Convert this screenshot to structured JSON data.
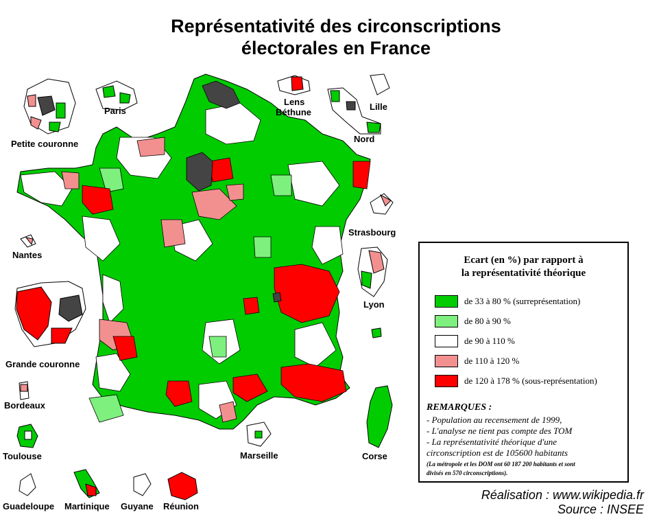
{
  "title": {
    "line1": "Représentativité des circonscriptions",
    "line2": "électorales en France"
  },
  "labels": {
    "paris": "Paris",
    "petite_couronne": "Petite couronne",
    "lens": "Lens",
    "bethune": "Béthune",
    "lille": "Lille",
    "nord": "Nord",
    "strasbourg": "Strasbourg",
    "nantes": "Nantes",
    "lyon": "Lyon",
    "grande_couronne": "Grande couronne",
    "bordeaux": "Bordeaux",
    "toulouse": "Toulouse",
    "marseille": "Marseille",
    "corse": "Corse",
    "guadeloupe": "Guadeloupe",
    "martinique": "Martinique",
    "guyane": "Guyane",
    "reunion": "Réunion"
  },
  "legend": {
    "title_line1": "Ecart (en %) par rapport à",
    "title_line2": "la représentativité théorique",
    "items": [
      {
        "label": "de 33 à 80 % (surreprésentation)",
        "color": "#00cc00"
      },
      {
        "label": "de 80 à 90 %",
        "color": "#7ef07e"
      },
      {
        "label": "de 90 à 110 %",
        "color": "#ffffff"
      },
      {
        "label": "de 110 à 120 %",
        "color": "#f29090"
      },
      {
        "label": "de 120 à 178 % (sous-représentation)",
        "color": "#ff0000"
      }
    ],
    "remarks_title": "REMARQUES :",
    "remarks": [
      "- Population au recensement de 1999,",
      "- L'analyse ne tient pas compte des TOM",
      "- La représentativité théorique d'une",
      "circonscription est de 105600 habitants"
    ],
    "note_line1": "(La métropole et les DOM ont 60 187 200 habitants et sont",
    "note_line2": "divisés en 570 circonscriptions)."
  },
  "credits": {
    "line1": "Réalisation : www.wikipedia.fr",
    "line2": "Source : INSEE"
  },
  "colors": {
    "over_strong": "#00cc00",
    "over_light": "#7ef07e",
    "neutral": "#ffffff",
    "under_light": "#f29090",
    "under_strong": "#ff0000",
    "excluded": "#444444"
  }
}
